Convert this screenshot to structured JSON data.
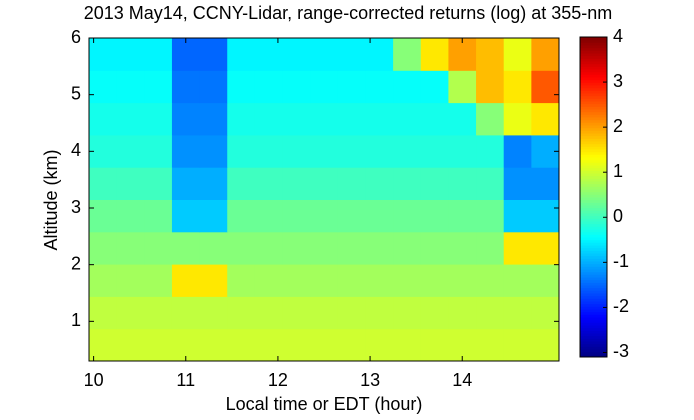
{
  "chart_data": {
    "type": "heatmap",
    "title": "2013 May14, CCNY-Lidar, range-corrected returns (log) at 355-nm",
    "x_label": "Local time or EDT (hour)",
    "y_label": "Altitude (km)",
    "xlim": [
      9.95,
      15.05
    ],
    "ylim": [
      0.3,
      6
    ],
    "xticks": [
      10,
      11,
      12,
      13,
      14
    ],
    "yticks": [
      1,
      2,
      3,
      4,
      5,
      6
    ],
    "xbins": [
      9.95,
      10.25,
      10.55,
      10.85,
      11.15,
      11.45,
      11.75,
      12.05,
      12.35,
      12.65,
      12.95,
      13.25,
      13.55,
      13.85,
      14.15,
      14.45,
      14.75,
      15.05
    ],
    "ybins": [
      0.3,
      0.87,
      1.44,
      2.01,
      2.58,
      3.15,
      3.72,
      4.29,
      4.86,
      5.43,
      6.0
    ],
    "colormap": "jet",
    "clim": [
      -3.1,
      4
    ],
    "colorbar_ticks": [
      4,
      3,
      2,
      1,
      0,
      -1,
      -2,
      -3
    ],
    "z": [
      [
        1.0,
        1.0,
        1.0,
        1.0,
        1.0,
        1.0,
        1.0,
        1.0,
        1.0,
        1.0,
        1.0,
        1.0,
        1.0,
        1.0,
        1.0,
        1.0,
        1.0
      ],
      [
        0.9,
        0.9,
        0.9,
        0.9,
        0.9,
        0.9,
        0.9,
        0.9,
        0.9,
        0.9,
        0.9,
        0.9,
        0.9,
        0.9,
        0.9,
        0.9,
        0.9
      ],
      [
        0.7,
        0.7,
        0.7,
        1.5,
        1.5,
        0.7,
        0.7,
        0.7,
        0.7,
        0.7,
        0.7,
        0.7,
        0.7,
        0.7,
        0.7,
        0.7,
        0.7
      ],
      [
        0.5,
        0.5,
        0.5,
        0.5,
        0.5,
        0.5,
        0.5,
        0.5,
        0.5,
        0.5,
        0.5,
        0.5,
        0.5,
        0.5,
        0.5,
        1.5,
        1.5
      ],
      [
        0.3,
        0.3,
        0.3,
        -0.8,
        -0.8,
        0.3,
        0.3,
        0.3,
        0.3,
        0.3,
        0.3,
        0.3,
        0.3,
        0.3,
        0.3,
        -0.8,
        -0.8
      ],
      [
        0.0,
        0.0,
        0.0,
        -1,
        -1,
        0.0,
        0.0,
        0.0,
        0.0,
        0.0,
        0.0,
        0.0,
        0.0,
        0.0,
        0.0,
        -1.2,
        -1.2
      ],
      [
        -0.2,
        -0.2,
        -0.2,
        -1.2,
        -1.2,
        -0.2,
        -0.2,
        -0.2,
        -0.2,
        -0.2,
        -0.2,
        -0.2,
        -0.2,
        -0.2,
        -0.2,
        -1.3,
        -1
      ],
      [
        -0.3,
        -0.3,
        -0.3,
        -1.3,
        -1.3,
        -0.3,
        -0.3,
        -0.3,
        -0.3,
        -0.3,
        -0.3,
        -0.3,
        -0.3,
        -0.3,
        0.5,
        1.2,
        1.5
      ],
      [
        -0.4,
        -0.4,
        -0.4,
        -1.4,
        -1.4,
        -0.4,
        -0.4,
        -0.4,
        -0.4,
        -0.4,
        -0.4,
        -0.4,
        -0.4,
        0.8,
        1.8,
        1.5,
        2.5
      ],
      [
        -0.5,
        -0.5,
        -0.5,
        -1.5,
        -1.5,
        -0.5,
        -0.5,
        -0.5,
        -0.5,
        -0.5,
        -0.5,
        0.5,
        1.5,
        2.0,
        1.8,
        1.2,
        2.0
      ]
    ]
  }
}
